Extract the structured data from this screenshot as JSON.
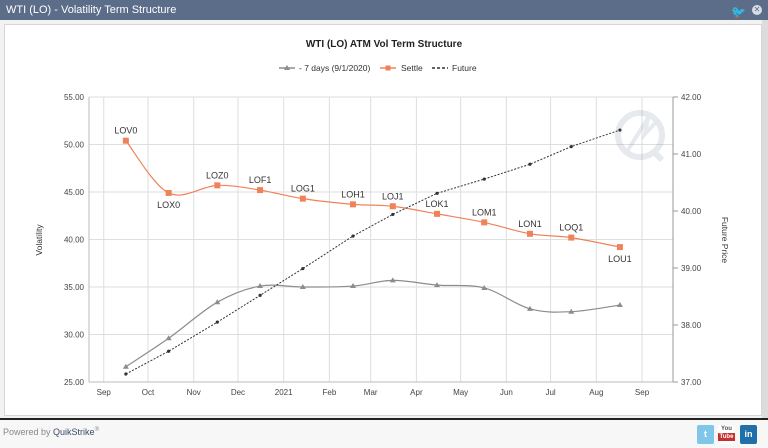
{
  "window": {
    "title": "WTI (LO) - Volatility Term Structure",
    "icons": [
      "twitter-icon",
      "close-icon"
    ]
  },
  "footer": {
    "powered_by": "Powered by",
    "brand": "QuikStrike",
    "reg": "®",
    "social": [
      "twitter-icon",
      "youtube-icon",
      "linkedin-icon"
    ],
    "youtube_top": "You",
    "youtube_bottom": "Tube",
    "linkedin": "in"
  },
  "chart_data": {
    "type": "line",
    "title": "WTI (LO) ATM Vol Term Structure",
    "ylabel": "Volatility",
    "y2label": "Future Price",
    "ylim": [
      25,
      55
    ],
    "y2lim": [
      37,
      42
    ],
    "yticks": [
      "25.00",
      "30.00",
      "35.00",
      "40.00",
      "45.00",
      "50.00",
      "55.00"
    ],
    "y2ticks": [
      "37.00",
      "38.00",
      "39.00",
      "40.00",
      "41.00",
      "42.00"
    ],
    "xlim": [
      "2020-08-22",
      "2021-09-22"
    ],
    "xticks": [
      {
        "date": "2020-09-01",
        "label": "Sep"
      },
      {
        "date": "2020-10-01",
        "label": "Oct"
      },
      {
        "date": "2020-11-01",
        "label": "Nov"
      },
      {
        "date": "2020-12-01",
        "label": "Dec"
      },
      {
        "date": "2021-01-01",
        "label": "2021"
      },
      {
        "date": "2021-02-01",
        "label": "Feb"
      },
      {
        "date": "2021-03-01",
        "label": "Mar"
      },
      {
        "date": "2021-04-01",
        "label": "Apr"
      },
      {
        "date": "2021-05-01",
        "label": "May"
      },
      {
        "date": "2021-06-01",
        "label": "Jun"
      },
      {
        "date": "2021-07-01",
        "label": "Jul"
      },
      {
        "date": "2021-08-01",
        "label": "Aug"
      },
      {
        "date": "2021-09-01",
        "label": "Sep"
      }
    ],
    "grid": true,
    "legend": "top-center",
    "x": [
      "2020-09-16",
      "2020-10-15",
      "2020-11-17",
      "2020-12-16",
      "2021-01-14",
      "2021-02-17",
      "2021-03-16",
      "2021-04-15",
      "2021-05-17",
      "2021-06-17",
      "2021-07-15",
      "2021-08-17"
    ],
    "point_labels": [
      "LOV0",
      "LOX0",
      "LOZ0",
      "LOF1",
      "LOG1",
      "LOH1",
      "LOJ1",
      "LOK1",
      "LOM1",
      "LON1",
      "LOQ1",
      "LOU1"
    ],
    "series": [
      {
        "name": "- 7 days (9/1/2020)",
        "axis": "left",
        "color": "#8c8c8c",
        "marker": "triangle",
        "values": [
          26.6,
          29.6,
          33.4,
          35.1,
          35.0,
          35.1,
          35.7,
          35.2,
          34.9,
          32.7,
          32.4,
          33.1
        ]
      },
      {
        "name": "Settle",
        "axis": "left",
        "color": "#f0825a",
        "marker": "square",
        "values": [
          50.4,
          44.9,
          45.7,
          45.2,
          44.3,
          43.7,
          43.5,
          42.7,
          41.8,
          40.6,
          40.2,
          39.2
        ]
      },
      {
        "name": "Future",
        "axis": "right",
        "color": "#333333",
        "marker": "dot",
        "dashed": true,
        "values": [
          37.14,
          37.54,
          38.05,
          38.52,
          38.99,
          39.56,
          39.94,
          40.31,
          40.56,
          40.82,
          41.13,
          41.42
        ]
      }
    ]
  }
}
